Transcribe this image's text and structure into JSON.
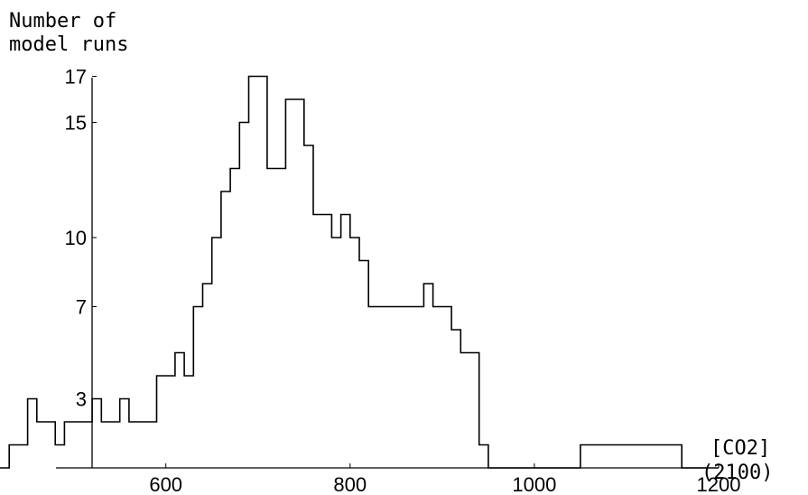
{
  "chart_data": {
    "type": "step",
    "title": "",
    "ylabel_lines": [
      "Number of",
      "model runs"
    ],
    "xlabel_lines": [
      "[CO2]",
      "(2100)"
    ],
    "xlim": [
      420,
      1200
    ],
    "ylim": [
      0,
      17.4
    ],
    "xticks": [
      600,
      800,
      1000,
      1200
    ],
    "yticks": [
      3,
      7,
      10,
      15,
      17
    ],
    "grid": false,
    "series": [
      {
        "x": [
          420,
          430,
          450,
          460,
          480,
          490,
          520,
          530,
          550,
          560,
          570,
          590,
          610,
          620,
          630,
          640,
          650,
          660,
          670,
          680,
          690,
          700,
          710,
          720,
          730,
          740,
          750,
          760,
          770,
          780,
          790,
          800,
          810,
          820,
          830,
          840,
          850,
          860,
          870,
          880,
          890,
          900,
          910,
          920,
          930,
          940,
          950,
          960,
          970,
          980,
          990,
          1000,
          1010,
          1020,
          1030,
          1040,
          1050,
          1060,
          1070,
          1080,
          1090,
          1100,
          1110,
          1120,
          1130,
          1140,
          1150,
          1160,
          1170,
          1180,
          1190
        ],
        "y": [
          0,
          1,
          3,
          2,
          1,
          2,
          3,
          2,
          3,
          2,
          2,
          4,
          5,
          4,
          7,
          8,
          10,
          12,
          13,
          15,
          17,
          17,
          13,
          13,
          16,
          16,
          14,
          11,
          11,
          10,
          11,
          10,
          9,
          7,
          7,
          7,
          7,
          7,
          7,
          8,
          7,
          7,
          6,
          5,
          5,
          1,
          0,
          0,
          0,
          0,
          0,
          0,
          0,
          0,
          0,
          0,
          1,
          1,
          1,
          1,
          1,
          1,
          1,
          1,
          1,
          1,
          1,
          0,
          0,
          0,
          0
        ]
      }
    ]
  }
}
